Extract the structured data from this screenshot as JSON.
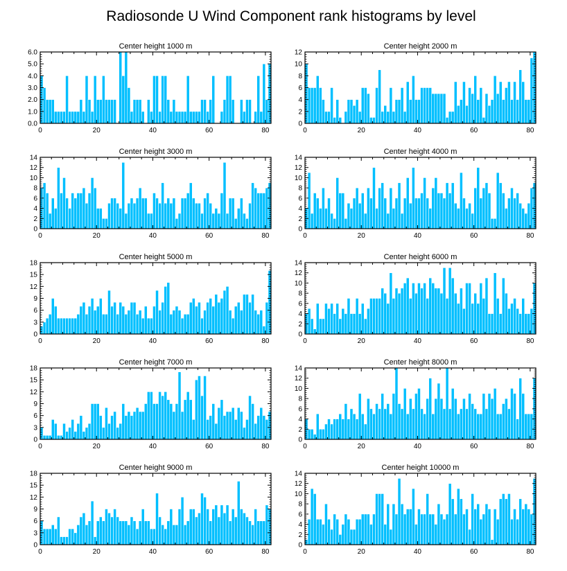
{
  "title": "Radiosonde U Wind Component rank histograms by level",
  "style": {
    "bar_color": "#00bfff",
    "bar_edge_color": "#ffffff",
    "axis_color": "#000000"
  },
  "chart_data": [
    {
      "type": "bar",
      "title": "Center height 1000 m",
      "xlim": [
        0,
        82
      ],
      "ylim": [
        0,
        6.0
      ],
      "x_ticks": [
        0,
        20,
        40,
        60,
        80
      ],
      "y_ticks": [
        "0.0",
        "1.0",
        "2.0",
        "3.0",
        "4.0",
        "5.0",
        "6.0"
      ],
      "values": [
        4,
        3,
        2,
        2,
        2,
        1,
        1,
        1,
        1,
        4,
        1,
        1,
        1,
        1,
        2,
        1,
        4,
        2,
        1,
        4,
        2,
        2,
        4,
        2,
        2,
        2,
        2,
        0,
        6,
        4,
        6,
        3,
        1,
        2,
        2,
        2,
        1,
        0,
        2,
        1,
        4,
        4,
        1,
        4,
        4,
        2,
        1,
        2,
        1,
        1,
        1,
        1,
        4,
        1,
        1,
        1,
        1,
        2,
        2,
        1,
        2,
        4,
        0,
        0,
        1,
        2,
        4,
        4,
        2,
        0,
        0,
        2,
        1,
        2,
        2,
        0,
        1,
        4,
        1,
        5,
        2,
        5
      ]
    },
    {
      "type": "bar",
      "title": "Center height 2000 m",
      "xlim": [
        0,
        82
      ],
      "ylim": [
        0,
        12
      ],
      "x_ticks": [
        0,
        20,
        40,
        60,
        80
      ],
      "y_ticks": [
        "0",
        "2",
        "4",
        "6",
        "8",
        "10",
        "12"
      ],
      "values": [
        10,
        6,
        6,
        6,
        8,
        6,
        4,
        2,
        2,
        6,
        1,
        4,
        1,
        0,
        2,
        4,
        4,
        3,
        4,
        2,
        6,
        6,
        5,
        1,
        1,
        6,
        9,
        2,
        3,
        2,
        6,
        2,
        4,
        4,
        6,
        2,
        7,
        4,
        8,
        4,
        4,
        6,
        6,
        6,
        6,
        5,
        5,
        5,
        5,
        5,
        1,
        2,
        2,
        7,
        3,
        4,
        7,
        3,
        6,
        5,
        8,
        4,
        6,
        1,
        5,
        3,
        4,
        8,
        5,
        7,
        4,
        6,
        7,
        4,
        7,
        4,
        9,
        7,
        4,
        4,
        11,
        12
      ]
    },
    {
      "type": "bar",
      "title": "Center height 3000 m",
      "xlim": [
        0,
        82
      ],
      "ylim": [
        0,
        14
      ],
      "x_ticks": [
        0,
        20,
        40,
        60,
        80
      ],
      "y_ticks": [
        "0",
        "2",
        "4",
        "6",
        "8",
        "10",
        "12",
        "14"
      ],
      "values": [
        8,
        9,
        7,
        3,
        6,
        4,
        12,
        7,
        10,
        6,
        4,
        7,
        6,
        7,
        7,
        8,
        5,
        7,
        10,
        8,
        4,
        4,
        2,
        2,
        5,
        6,
        6,
        5,
        4,
        13,
        3,
        5,
        6,
        5,
        6,
        8,
        6,
        6,
        3,
        3,
        7,
        6,
        5,
        9,
        5,
        6,
        5,
        6,
        2,
        3,
        6,
        6,
        7,
        9,
        6,
        5,
        5,
        3,
        6,
        7,
        5,
        3,
        4,
        3,
        7,
        13,
        3,
        6,
        6,
        2,
        4,
        6,
        3,
        2,
        5,
        9,
        8,
        7,
        7,
        7,
        8,
        9
      ]
    },
    {
      "type": "bar",
      "title": "Center height 4000 m",
      "xlim": [
        0,
        82
      ],
      "ylim": [
        0,
        14
      ],
      "x_ticks": [
        0,
        20,
        40,
        60,
        80
      ],
      "y_ticks": [
        "0",
        "2",
        "4",
        "6",
        "8",
        "10",
        "12",
        "14"
      ],
      "values": [
        4,
        11,
        3,
        7,
        6,
        4,
        8,
        4,
        6,
        3,
        2,
        10,
        7,
        7,
        2,
        5,
        4,
        6,
        8,
        5,
        7,
        3,
        8,
        6,
        12,
        4,
        8,
        9,
        6,
        3,
        8,
        4,
        6,
        9,
        3,
        6,
        10,
        5,
        12,
        6,
        6,
        7,
        10,
        6,
        4,
        8,
        10,
        7,
        7,
        6,
        9,
        7,
        9,
        5,
        4,
        11,
        6,
        4,
        5,
        3,
        8,
        12,
        6,
        8,
        9,
        7,
        2,
        2,
        11,
        9,
        7,
        4,
        6,
        8,
        6,
        7,
        5,
        4,
        3,
        5,
        8,
        9
      ]
    },
    {
      "type": "bar",
      "title": "Center height 5000 m",
      "xlim": [
        0,
        82
      ],
      "ylim": [
        0,
        18
      ],
      "x_ticks": [
        0,
        20,
        40,
        60,
        80
      ],
      "y_ticks": [
        "0",
        "3",
        "6",
        "9",
        "12",
        "15",
        "18"
      ],
      "values": [
        2,
        3,
        4,
        5,
        9,
        7,
        4,
        4,
        4,
        4,
        4,
        4,
        4,
        5,
        7,
        8,
        5,
        7,
        9,
        6,
        7,
        9,
        5,
        5,
        11,
        7,
        8,
        5,
        8,
        7,
        5,
        6,
        8,
        8,
        5,
        6,
        4,
        7,
        4,
        4,
        7,
        11,
        6,
        8,
        12,
        13,
        5,
        6,
        7,
        6,
        4,
        5,
        5,
        8,
        9,
        7,
        8,
        4,
        6,
        8,
        9,
        7,
        10,
        8,
        9,
        11,
        12,
        6,
        4,
        7,
        8,
        6,
        10,
        10,
        8,
        10,
        6,
        5,
        6,
        2,
        8,
        16
      ]
    },
    {
      "type": "bar",
      "title": "Center height 6000 m",
      "xlim": [
        0,
        82
      ],
      "ylim": [
        0,
        14
      ],
      "x_ticks": [
        0,
        20,
        40,
        60,
        80
      ],
      "y_ticks": [
        "0",
        "2",
        "4",
        "6",
        "8",
        "10",
        "12",
        "14"
      ],
      "values": [
        4,
        5,
        3,
        1,
        6,
        3,
        3,
        6,
        5,
        6,
        4,
        6,
        3,
        5,
        4,
        7,
        4,
        4,
        7,
        4,
        6,
        3,
        5,
        7,
        7,
        7,
        7,
        9,
        8,
        6,
        12,
        7,
        9,
        8,
        9,
        10,
        11,
        7,
        10,
        8,
        10,
        9,
        10,
        7,
        11,
        10,
        9,
        9,
        8,
        13,
        7,
        13,
        11,
        8,
        6,
        9,
        5,
        10,
        10,
        6,
        8,
        6,
        10,
        7,
        11,
        4,
        4,
        12,
        7,
        4,
        11,
        8,
        5,
        6,
        7,
        5,
        4,
        7,
        4,
        4,
        5,
        10
      ]
    },
    {
      "type": "bar",
      "title": "Center height 7000 m",
      "xlim": [
        0,
        82
      ],
      "ylim": [
        0,
        18
      ],
      "x_ticks": [
        0,
        20,
        40,
        60,
        80
      ],
      "y_ticks": [
        "0",
        "3",
        "6",
        "9",
        "12",
        "15",
        "18"
      ],
      "values": [
        3,
        1,
        1,
        1,
        5,
        4,
        1,
        1,
        4,
        2,
        3,
        5,
        2,
        4,
        6,
        2,
        3,
        4,
        9,
        9,
        9,
        6,
        3,
        8,
        4,
        6,
        7,
        3,
        4,
        9,
        6,
        7,
        6,
        7,
        8,
        7,
        7,
        9,
        12,
        12,
        9,
        9,
        12,
        11,
        12,
        10,
        9,
        7,
        9,
        17,
        7,
        10,
        12,
        10,
        5,
        15,
        16,
        11,
        16,
        5,
        6,
        9,
        4,
        8,
        10,
        6,
        7,
        7,
        8,
        5,
        8,
        7,
        3,
        5,
        11,
        9,
        4,
        6,
        8,
        6,
        5,
        7
      ]
    },
    {
      "type": "bar",
      "title": "Center height 8000 m",
      "xlim": [
        0,
        82
      ],
      "ylim": [
        0,
        14
      ],
      "x_ticks": [
        0,
        20,
        40,
        60,
        80
      ],
      "y_ticks": [
        "0",
        "2",
        "4",
        "6",
        "8",
        "10",
        "12",
        "14"
      ],
      "values": [
        4,
        2,
        2,
        1,
        5,
        2,
        2,
        3,
        4,
        3,
        4,
        4,
        5,
        4,
        7,
        4,
        6,
        5,
        4,
        9,
        5,
        3,
        8,
        6,
        5,
        7,
        6,
        9,
        6,
        7,
        5,
        9,
        14,
        7,
        6,
        10,
        5,
        8,
        6,
        9,
        10,
        6,
        5,
        8,
        12,
        5,
        8,
        11,
        8,
        6,
        14,
        6,
        10,
        8,
        5,
        6,
        8,
        6,
        9,
        7,
        6,
        5,
        5,
        9,
        6,
        9,
        8,
        10,
        5,
        5,
        7,
        8,
        6,
        10,
        9,
        4,
        12,
        9,
        5,
        5,
        5,
        12
      ]
    },
    {
      "type": "bar",
      "title": "Center height 9000 m",
      "xlim": [
        0,
        82
      ],
      "ylim": [
        0,
        18
      ],
      "x_ticks": [
        0,
        20,
        40,
        60,
        80
      ],
      "y_ticks": [
        "0",
        "3",
        "6",
        "9",
        "12",
        "15",
        "18"
      ],
      "values": [
        6,
        4,
        4,
        4,
        5,
        4,
        7,
        2,
        2,
        2,
        4,
        4,
        3,
        5,
        7,
        8,
        5,
        6,
        11,
        2,
        6,
        7,
        6,
        9,
        8,
        7,
        9,
        7,
        6,
        6,
        6,
        5,
        7,
        6,
        4,
        6,
        9,
        6,
        6,
        4,
        4,
        13,
        7,
        5,
        4,
        6,
        9,
        5,
        5,
        9,
        12,
        5,
        6,
        9,
        9,
        7,
        8,
        13,
        12,
        9,
        6,
        9,
        10,
        7,
        10,
        8,
        10,
        6,
        9,
        7,
        16,
        9,
        8,
        7,
        6,
        5,
        9,
        6,
        6,
        6,
        10,
        9
      ]
    },
    {
      "type": "bar",
      "title": "Center height 10000 m",
      "xlim": [
        0,
        82
      ],
      "ylim": [
        0,
        14
      ],
      "x_ticks": [
        0,
        20,
        40,
        60,
        80
      ],
      "y_ticks": [
        "0",
        "2",
        "4",
        "6",
        "8",
        "10",
        "12",
        "14"
      ],
      "values": [
        1,
        5,
        11,
        10,
        5,
        5,
        4,
        8,
        5,
        3,
        6,
        5,
        2,
        4,
        6,
        5,
        3,
        3,
        5,
        5,
        6,
        6,
        6,
        4,
        6,
        10,
        10,
        10,
        4,
        8,
        3,
        8,
        6,
        13,
        8,
        6,
        7,
        7,
        11,
        4,
        7,
        6,
        6,
        10,
        6,
        6,
        4,
        8,
        6,
        5,
        6,
        12,
        9,
        6,
        11,
        9,
        6,
        7,
        3,
        10,
        7,
        8,
        5,
        6,
        8,
        7,
        1,
        7,
        5,
        9,
        10,
        9,
        10,
        5,
        7,
        5,
        9,
        7,
        8,
        7,
        6,
        13
      ]
    }
  ]
}
